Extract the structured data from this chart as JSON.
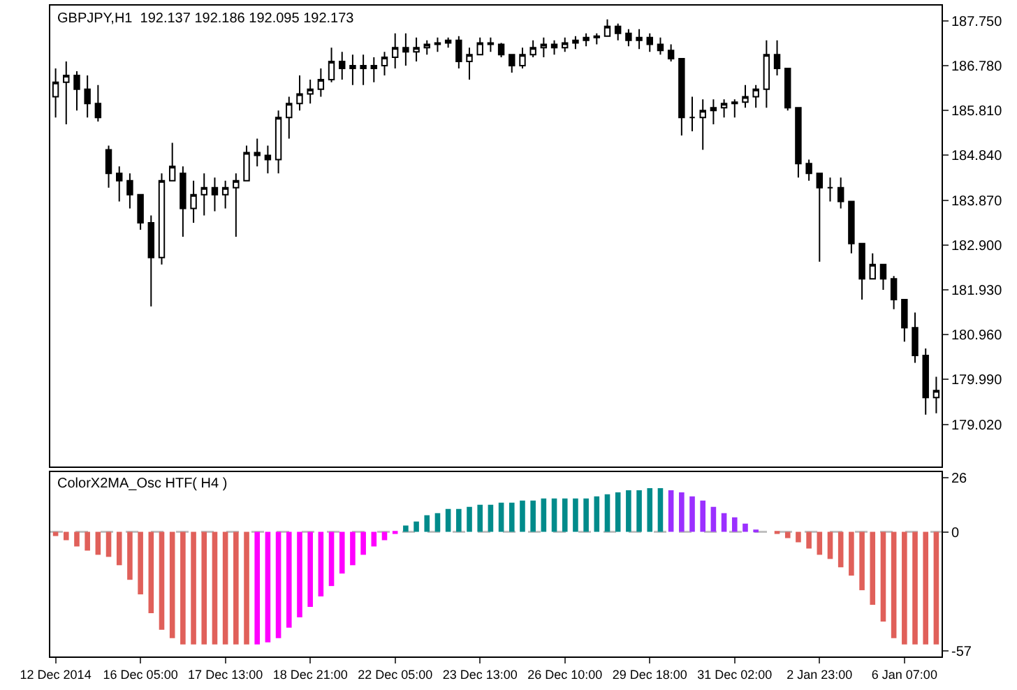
{
  "chart_data": [
    {
      "type": "candlestick",
      "title": "GBPJPY,H1  192.137 192.186 192.095 192.173",
      "color": "#000000",
      "tick_labels": "y",
      "categories": [
        null,
        null,
        null,
        null,
        null,
        null,
        null,
        null,
        null,
        null,
        null,
        null,
        null,
        null,
        null,
        null,
        null,
        null,
        null,
        null,
        null,
        null,
        null,
        null,
        null,
        null,
        null,
        null,
        null,
        null,
        null,
        null,
        null,
        null,
        null,
        null,
        null,
        null,
        null,
        null,
        null,
        null,
        null,
        null,
        null,
        null,
        null,
        null,
        null,
        null,
        null,
        null,
        null,
        null,
        null,
        null,
        null,
        null,
        null,
        null,
        null,
        null,
        null,
        null,
        null,
        null,
        null,
        null,
        null,
        null,
        null,
        null,
        null,
        null,
        null,
        null,
        null,
        null,
        null,
        null,
        null,
        null,
        null,
        null
      ],
      "ylim": [
        178.11,
        188.08
      ],
      "yticks": [
        {
          "value": 187.75,
          "label": "187.750"
        },
        {
          "value": 186.78,
          "label": "186.780"
        },
        {
          "value": 185.81,
          "label": "185.810"
        },
        {
          "value": 184.84,
          "label": "184.840"
        },
        {
          "value": 183.87,
          "label": "183.870"
        },
        {
          "value": 182.9,
          "label": "182.900"
        },
        {
          "value": 181.93,
          "label": "181.930"
        },
        {
          "value": 180.96,
          "label": "180.960"
        },
        {
          "value": 179.99,
          "label": "179.990"
        },
        {
          "value": 179.02,
          "label": "179.020"
        }
      ],
      "ohlc": [
        [
          186.11,
          186.72,
          185.66,
          186.42
        ],
        [
          186.42,
          186.87,
          185.51,
          186.57
        ],
        [
          186.57,
          186.66,
          185.81,
          186.27
        ],
        [
          186.27,
          186.57,
          185.66,
          185.96
        ],
        [
          185.96,
          186.36,
          185.57,
          185.66
        ],
        [
          184.96,
          185.05,
          184.14,
          184.45
        ],
        [
          184.45,
          184.6,
          183.84,
          184.29
        ],
        [
          184.29,
          184.45,
          183.69,
          183.99
        ],
        [
          183.99,
          183.99,
          183.23,
          183.38
        ],
        [
          183.38,
          183.54,
          181.57,
          182.63
        ],
        [
          182.63,
          184.45,
          182.48,
          184.29
        ],
        [
          184.29,
          185.11,
          184.29,
          184.6
        ],
        [
          184.45,
          184.6,
          183.08,
          183.69
        ],
        [
          183.69,
          184.29,
          183.38,
          183.99
        ],
        [
          183.99,
          184.45,
          183.54,
          184.14
        ],
        [
          184.14,
          184.36,
          183.63,
          183.99
        ],
        [
          183.99,
          184.29,
          183.69,
          184.14
        ],
        [
          184.14,
          184.45,
          183.08,
          184.29
        ],
        [
          184.29,
          185.05,
          184.29,
          184.9
        ],
        [
          184.9,
          185.2,
          184.6,
          184.84
        ],
        [
          184.84,
          185.05,
          184.45,
          184.75
        ],
        [
          184.75,
          185.81,
          184.45,
          185.66
        ],
        [
          185.66,
          186.11,
          185.2,
          185.96
        ],
        [
          185.96,
          186.57,
          185.81,
          186.17
        ],
        [
          186.17,
          186.48,
          185.96,
          186.27
        ],
        [
          186.27,
          186.72,
          186.11,
          186.48
        ],
        [
          186.48,
          187.17,
          186.42,
          186.87
        ],
        [
          186.87,
          187.08,
          186.48,
          186.72
        ],
        [
          186.72,
          187.02,
          186.36,
          186.78
        ],
        [
          186.78,
          187.02,
          186.36,
          186.72
        ],
        [
          186.72,
          186.96,
          186.42,
          186.78
        ],
        [
          186.78,
          187.08,
          186.57,
          186.96
        ],
        [
          186.96,
          187.48,
          186.72,
          187.17
        ],
        [
          187.17,
          187.48,
          186.78,
          187.08
        ],
        [
          187.08,
          187.39,
          186.87,
          187.17
        ],
        [
          187.17,
          187.33,
          187.02,
          187.24
        ],
        [
          187.24,
          187.39,
          187.08,
          187.27
        ],
        [
          187.27,
          187.39,
          187.17,
          187.33
        ],
        [
          187.33,
          187.42,
          186.72,
          186.87
        ],
        [
          186.87,
          187.17,
          186.48,
          187.02
        ],
        [
          187.02,
          187.39,
          187.02,
          187.27
        ],
        [
          187.27,
          187.39,
          187.08,
          187.24
        ],
        [
          187.24,
          187.27,
          186.96,
          187.02
        ],
        [
          187.02,
          187.02,
          186.63,
          186.78
        ],
        [
          186.78,
          187.17,
          186.72,
          187.02
        ],
        [
          187.02,
          187.33,
          186.96,
          187.17
        ],
        [
          187.17,
          187.39,
          186.96,
          187.24
        ],
        [
          187.24,
          187.33,
          187.02,
          187.17
        ],
        [
          187.17,
          187.39,
          187.08,
          187.27
        ],
        [
          187.27,
          187.42,
          187.14,
          187.33
        ],
        [
          187.33,
          187.48,
          187.2,
          187.39
        ],
        [
          187.39,
          187.48,
          187.24,
          187.42
        ],
        [
          187.42,
          187.78,
          187.42,
          187.63
        ],
        [
          187.63,
          187.69,
          187.33,
          187.48
        ],
        [
          187.48,
          187.57,
          187.2,
          187.33
        ],
        [
          187.33,
          187.57,
          187.14,
          187.39
        ],
        [
          187.39,
          187.48,
          187.08,
          187.24
        ],
        [
          187.24,
          187.39,
          187.02,
          187.11
        ],
        [
          187.11,
          187.24,
          186.87,
          186.93
        ],
        [
          186.93,
          186.93,
          185.27,
          185.66
        ],
        [
          185.66,
          186.11,
          185.36,
          185.66
        ],
        [
          185.66,
          186.05,
          184.96,
          185.81
        ],
        [
          185.81,
          186.05,
          185.51,
          185.87
        ],
        [
          185.87,
          186.05,
          185.66,
          185.96
        ],
        [
          185.96,
          186.05,
          185.66,
          185.99
        ],
        [
          185.99,
          186.36,
          185.87,
          186.11
        ],
        [
          186.11,
          186.36,
          185.87,
          186.27
        ],
        [
          186.27,
          187.33,
          185.87,
          187.02
        ],
        [
          187.02,
          187.33,
          186.57,
          186.72
        ],
        [
          186.72,
          186.72,
          185.81,
          185.87
        ],
        [
          185.87,
          185.87,
          184.36,
          184.66
        ],
        [
          184.66,
          184.75,
          184.29,
          184.45
        ],
        [
          184.45,
          184.45,
          182.54,
          184.14
        ],
        [
          184.14,
          184.36,
          183.84,
          184.14
        ],
        [
          184.14,
          184.36,
          183.69,
          183.84
        ],
        [
          183.84,
          183.84,
          182.72,
          182.93
        ],
        [
          182.93,
          182.93,
          181.72,
          182.17
        ],
        [
          182.17,
          182.72,
          182.17,
          182.48
        ],
        [
          182.48,
          182.48,
          181.93,
          182.17
        ],
        [
          182.17,
          182.23,
          181.51,
          181.72
        ],
        [
          181.72,
          181.72,
          180.81,
          181.11
        ],
        [
          181.11,
          181.44,
          180.35,
          180.51
        ],
        [
          180.51,
          180.66,
          179.23,
          179.6
        ],
        [
          179.6,
          180.05,
          179.26,
          179.75
        ]
      ]
    },
    {
      "type": "bar",
      "title": "ColorX2MA_Osc HTF( H4 )",
      "categories": [
        "12 Dec 2014",
        null,
        null,
        null,
        null,
        null,
        null,
        null,
        "16 Dec 05:00",
        null,
        null,
        null,
        null,
        null,
        null,
        null,
        "17 Dec 13:00",
        null,
        null,
        null,
        null,
        null,
        null,
        null,
        "18 Dec 21:00",
        null,
        null,
        null,
        null,
        null,
        null,
        null,
        "22 Dec 05:00",
        null,
        null,
        null,
        null,
        null,
        null,
        null,
        "23 Dec 13:00",
        null,
        null,
        null,
        null,
        null,
        null,
        null,
        "26 Dec 10:00",
        null,
        null,
        null,
        null,
        null,
        null,
        null,
        "29 Dec 18:00",
        null,
        null,
        null,
        null,
        null,
        null,
        null,
        "31 Dec 02:00",
        null,
        null,
        null,
        null,
        null,
        null,
        null,
        "2 Jan 23:00",
        null,
        null,
        null,
        null,
        null,
        null,
        null,
        "6 Jan 07:00",
        null,
        null,
        null
      ],
      "values": [
        -2,
        -4,
        -7,
        -9,
        -11,
        -12,
        -16,
        -23,
        -30,
        -39,
        -47,
        -51,
        -54,
        -54,
        -54,
        -54,
        -54,
        -54,
        -54,
        -54,
        -53,
        -51,
        -46,
        -41,
        -36,
        -31,
        -26,
        -20,
        -16,
        -11,
        -7,
        -4,
        -1,
        3,
        5,
        8,
        9,
        11,
        11,
        12,
        13,
        13,
        14,
        14,
        15,
        15,
        16,
        16,
        16,
        16,
        16,
        17,
        18,
        19,
        20,
        20,
        21,
        21,
        20,
        19,
        17,
        15,
        12,
        9,
        7,
        4,
        1,
        null,
        -1,
        -3,
        -5,
        -8,
        -11,
        -13,
        -17,
        -21,
        -28,
        -35,
        -43,
        -51,
        -54,
        -54,
        -54,
        -54
      ],
      "colors": [
        "#e0605a",
        "#e0605a",
        "#e0605a",
        "#e0605a",
        "#e0605a",
        "#e0605a",
        "#e0605a",
        "#e0605a",
        "#e0605a",
        "#e0605a",
        "#e0605a",
        "#e0605a",
        "#e0605a",
        "#e0605a",
        "#e0605a",
        "#e0605a",
        "#e0605a",
        "#e0605a",
        "#e0605a",
        "#ff00ff",
        "#ff00ff",
        "#ff00ff",
        "#ff00ff",
        "#ff00ff",
        "#ff00ff",
        "#ff00ff",
        "#ff00ff",
        "#ff00ff",
        "#ff00ff",
        "#ff00ff",
        "#ff00ff",
        "#ff00ff",
        "#ff00ff",
        "#008b8b",
        "#008b8b",
        "#008b8b",
        "#008b8b",
        "#008b8b",
        "#008b8b",
        "#008b8b",
        "#008b8b",
        "#008b8b",
        "#008b8b",
        "#008b8b",
        "#008b8b",
        "#008b8b",
        "#008b8b",
        "#008b8b",
        "#008b8b",
        "#008b8b",
        "#008b8b",
        "#008b8b",
        "#008b8b",
        "#008b8b",
        "#008b8b",
        "#008b8b",
        "#008b8b",
        "#008b8b",
        "#9b30ff",
        "#9b30ff",
        "#9b30ff",
        "#9b30ff",
        "#9b30ff",
        "#9b30ff",
        "#9b30ff",
        "#9b30ff",
        "#9b30ff",
        "#9b30ff",
        "#e0605a",
        "#e0605a",
        "#e0605a",
        "#e0605a",
        "#e0605a",
        "#e0605a",
        "#e0605a",
        "#e0605a",
        "#e0605a",
        "#e0605a",
        "#e0605a",
        "#e0605a",
        "#e0605a",
        "#e0605a",
        "#e0605a",
        "#e0605a"
      ],
      "ylim": [
        -59.8,
        28.6
      ],
      "yticks": [
        26,
        0,
        -57
      ],
      "ref_lines": [
        {
          "axis": "y",
          "value": 0,
          "color": "#c0c0c0",
          "line_style": "dashed"
        }
      ]
    }
  ]
}
